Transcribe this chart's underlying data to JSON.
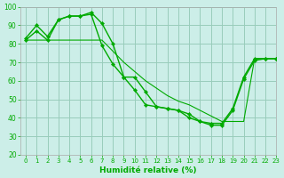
{
  "title": "",
  "xlabel": "Humidité relative (%)",
  "ylabel": "",
  "background_color": "#cceee8",
  "grid_color": "#99ccbb",
  "line_color": "#00aa00",
  "ylim": [
    20,
    100
  ],
  "xlim": [
    -0.5,
    23
  ],
  "yticks": [
    20,
    30,
    40,
    50,
    60,
    70,
    80,
    90,
    100
  ],
  "xticks": [
    0,
    1,
    2,
    3,
    4,
    5,
    6,
    7,
    8,
    9,
    10,
    11,
    12,
    13,
    14,
    15,
    16,
    17,
    18,
    19,
    20,
    21,
    22,
    23
  ],
  "series": [
    {
      "y": [
        82,
        87,
        82,
        93,
        95,
        95,
        97,
        91,
        80,
        62,
        62,
        54,
        46,
        45,
        44,
        42,
        38,
        37,
        37,
        45,
        62,
        72,
        72,
        72
      ],
      "marker": true,
      "lw": 1.0
    },
    {
      "y": [
        83,
        90,
        84,
        93,
        95,
        95,
        96,
        79,
        69,
        62,
        55,
        47,
        46,
        45,
        44,
        40,
        38,
        36,
        36,
        44,
        61,
        71,
        72,
        72
      ],
      "marker": true,
      "lw": 1.0
    },
    {
      "y": [
        82,
        82,
        82,
        82,
        82,
        82,
        82,
        82,
        76,
        70,
        65,
        60,
        56,
        52,
        49,
        47,
        44,
        41,
        38,
        38,
        38,
        72,
        72,
        72
      ],
      "marker": false,
      "lw": 0.8
    }
  ]
}
